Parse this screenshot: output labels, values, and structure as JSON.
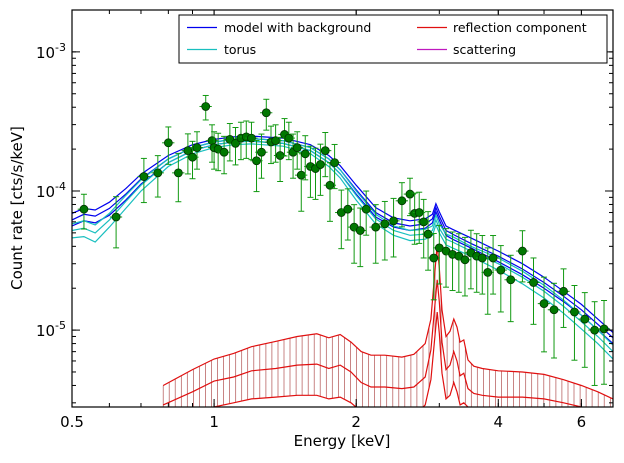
{
  "chart_data": {
    "type": "line",
    "xlabel": "Energy [keV]",
    "ylabel": "Count rate [cts/s/keV]",
    "x_scale": "log",
    "y_scale": "log",
    "xlim": [
      0.5,
      7.0
    ],
    "ylim": [
      2.8e-06,
      0.002
    ],
    "grid": false,
    "legend_position": "top-right",
    "legend_columns": 2,
    "x_tick_labels": [
      {
        "value": 0.5,
        "label": "0.5"
      },
      {
        "value": 1,
        "label": "1"
      },
      {
        "value": 2,
        "label": "2"
      },
      {
        "value": 4,
        "label": "4"
      },
      {
        "value": 6,
        "label": "6"
      }
    ],
    "y_tick_labels": [
      {
        "value": 1e-05,
        "base": "10",
        "exp": "-5"
      },
      {
        "value": 0.0001,
        "base": "10",
        "exp": "-4"
      },
      {
        "value": 0.001,
        "base": "10",
        "exp": "-3"
      }
    ],
    "legend": [
      {
        "name": "model with background",
        "color": "#0000ee"
      },
      {
        "name": "torus",
        "color": "#19bfbf"
      },
      {
        "name": "reflection component",
        "color": "#e01010"
      },
      {
        "name": "scattering",
        "color": "#bf19bf"
      }
    ],
    "series": [
      {
        "name": "model with background",
        "color": "#0000ee",
        "x": [
          0.5,
          0.53,
          0.56,
          0.6,
          0.65,
          0.7,
          0.8,
          0.9,
          1.0,
          1.1,
          1.2,
          1.4,
          1.6,
          1.75,
          1.85,
          2.0,
          2.2,
          2.4,
          2.6,
          2.8,
          2.9,
          2.95,
          3.0,
          3.1,
          3.2,
          3.5,
          4.0,
          4.5,
          5.0,
          5.5,
          6.0,
          6.5,
          7.0
        ],
        "y": [
          6.2e-05,
          6.8e-05,
          6.6e-05,
          7.5e-05,
          9.5e-05,
          0.000122,
          0.00017,
          0.000205,
          0.000225,
          0.000235,
          0.000238,
          0.00023,
          0.000205,
          0.00017,
          0.000142,
          0.000102,
          7e-05,
          5.9e-05,
          5.6e-05,
          5.8e-05,
          6.3e-05,
          7.6e-05,
          6.6e-05,
          5.2e-05,
          4.9e-05,
          4.2e-05,
          3.4e-05,
          2.75e-05,
          2.2e-05,
          1.75e-05,
          1.4e-05,
          1.1e-05,
          8.8e-06
        ],
        "y_lower": [
          5.6e-05,
          6.1e-05,
          5.9e-05,
          6.7e-05,
          8.6e-05,
          0.000112,
          0.00016,
          0.000195,
          0.000215,
          0.000225,
          0.000228,
          0.00022,
          0.000195,
          0.00016,
          0.000133,
          9.5e-05,
          6.5e-05,
          5.5e-05,
          5.2e-05,
          5.4e-05,
          5.9e-05,
          7.1e-05,
          6.2e-05,
          4.8e-05,
          4.5e-05,
          3.9e-05,
          3.1e-05,
          2.5e-05,
          2e-05,
          1.6e-05,
          1.28e-05,
          1e-05,
          8e-06
        ],
        "y_upper": [
          6.9e-05,
          7.5e-05,
          7.3e-05,
          8.3e-05,
          0.000104,
          0.000132,
          0.00018,
          0.000215,
          0.000235,
          0.000245,
          0.000248,
          0.00024,
          0.000215,
          0.00018,
          0.000152,
          0.00011,
          7.6e-05,
          6.4e-05,
          6.1e-05,
          6.3e-05,
          6.8e-05,
          8.1e-05,
          7.1e-05,
          5.6e-05,
          5.3e-05,
          4.6e-05,
          3.7e-05,
          3e-05,
          2.4e-05,
          1.9e-05,
          1.53e-05,
          1.2e-05,
          9.6e-06
        ]
      },
      {
        "name": "torus",
        "color": "#19bfbf",
        "x": [
          0.5,
          0.53,
          0.56,
          0.6,
          0.65,
          0.7,
          0.8,
          0.9,
          1.0,
          1.1,
          1.2,
          1.4,
          1.6,
          1.75,
          1.85,
          2.0,
          2.2,
          2.4,
          2.6,
          2.8,
          2.9,
          2.95,
          3.0,
          3.1,
          3.2,
          3.5,
          4.0,
          4.5,
          5.0,
          5.5,
          6.0,
          6.5,
          7.0
        ],
        "y": [
          5.2e-05,
          5.4e-05,
          5e-05,
          6.2e-05,
          8.4e-05,
          0.00011,
          0.00016,
          0.000195,
          0.000215,
          0.000225,
          0.000228,
          0.00022,
          0.000195,
          0.00016,
          0.000133,
          9.3e-05,
          6.3e-05,
          5.2e-05,
          4.8e-05,
          4.9e-05,
          5.2e-05,
          6.2e-05,
          5.4e-05,
          4.5e-05,
          4.3e-05,
          3.7e-05,
          3e-05,
          2.4e-05,
          1.9e-05,
          1.48e-05,
          1.15e-05,
          9e-06,
          7e-06
        ],
        "y_lower": [
          4.6e-05,
          4.7e-05,
          4.3e-05,
          5.5e-05,
          7.5e-05,
          0.0001,
          0.00015,
          0.000185,
          0.000205,
          0.000215,
          0.000218,
          0.00021,
          0.000185,
          0.00015,
          0.000124,
          8.6e-05,
          5.8e-05,
          4.8e-05,
          4.4e-05,
          4.5e-05,
          4.8e-05,
          5.7e-05,
          5e-05,
          4.1e-05,
          3.9e-05,
          3.4e-05,
          2.7e-05,
          2.15e-05,
          1.7e-05,
          1.32e-05,
          1.02e-05,
          8e-06,
          6.2e-06
        ],
        "y_upper": [
          5.8e-05,
          6.1e-05,
          5.7e-05,
          6.9e-05,
          9.3e-05,
          0.00012,
          0.00017,
          0.000205,
          0.000225,
          0.000235,
          0.000238,
          0.00023,
          0.000205,
          0.00017,
          0.000142,
          0.0001,
          6.8e-05,
          5.6e-05,
          5.2e-05,
          5.3e-05,
          5.6e-05,
          6.7e-05,
          5.8e-05,
          4.9e-05,
          4.7e-05,
          4e-05,
          3.3e-05,
          2.65e-05,
          2.1e-05,
          1.64e-05,
          1.28e-05,
          1e-05,
          7.8e-06
        ]
      },
      {
        "name": "reflection component",
        "color": "#e01010",
        "x": [
          0.78,
          0.9,
          1.0,
          1.1,
          1.2,
          1.35,
          1.5,
          1.65,
          1.75,
          1.85,
          1.95,
          2.05,
          2.15,
          2.3,
          2.5,
          2.65,
          2.8,
          2.88,
          2.94,
          2.97,
          3.0,
          3.04,
          3.1,
          3.16,
          3.22,
          3.27,
          3.32,
          3.38,
          3.45,
          3.55,
          3.7,
          4.0,
          4.5,
          5.0,
          5.5,
          6.0,
          6.5,
          7.0
        ],
        "y": [
          2.9e-06,
          3.6e-06,
          4.3e-06,
          4.6e-06,
          5.1e-06,
          5.3e-06,
          5.6e-06,
          5.7e-06,
          5.3e-06,
          5.6e-06,
          5e-06,
          4.2e-06,
          3.9e-06,
          3.9e-06,
          3.8e-06,
          3.9e-06,
          4.6e-06,
          7.2e-06,
          1.6e-05,
          2.3e-05,
          1.6e-05,
          8.2e-06,
          5.2e-06,
          5.6e-06,
          7e-06,
          6e-06,
          4.7e-06,
          4.9e-06,
          3.8e-06,
          3.5e-06,
          3.4e-06,
          3.3e-06,
          3.3e-06,
          3.2e-06,
          3e-06,
          2.8e-06,
          2.6e-06,
          2.4e-06
        ],
        "y_lower": [
          2e-06,
          2.4e-06,
          2.8e-06,
          3e-06,
          3.2e-06,
          3.3e-06,
          3.4e-06,
          3.4e-06,
          3.2e-06,
          3.3e-06,
          3e-06,
          2.6e-06,
          2.4e-06,
          2.4e-06,
          2.4e-06,
          2.4e-06,
          2.9e-06,
          4.4e-06,
          9.5e-06,
          1.35e-05,
          9.5e-06,
          4.9e-06,
          3.2e-06,
          3.4e-06,
          4.2e-06,
          3.6e-06,
          2.9e-06,
          3e-06,
          2.8e-06,
          2.7e-06,
          2.7e-06,
          2.7e-06,
          2.6e-06,
          2.5e-06,
          2.3e-06,
          2.1e-06,
          2e-06,
          1.9e-06
        ],
        "y_upper": [
          4e-06,
          5.2e-06,
          6.2e-06,
          6.8e-06,
          7.6e-06,
          8.3e-06,
          9e-06,
          9.4e-06,
          8.8e-06,
          9.3e-06,
          8.2e-06,
          7e-06,
          6.6e-06,
          6.6e-06,
          6.4e-06,
          6.7e-06,
          8e-06,
          1.2e-05,
          2.8e-05,
          4.1e-05,
          2.8e-05,
          1.4e-05,
          9e-06,
          9.8e-06,
          1.2e-05,
          1.05e-05,
          8.2e-06,
          8.5e-06,
          6.1e-06,
          5.5e-06,
          5.3e-06,
          5.1e-06,
          5e-06,
          4.8e-06,
          4.4e-06,
          4e-06,
          3.6e-06,
          3.2e-06
        ]
      }
    ],
    "data_points": {
      "name": "data",
      "color": "#007700",
      "errorbar_color": "#119911",
      "x": [
        0.53,
        0.62,
        0.71,
        0.76,
        0.8,
        0.84,
        0.88,
        0.9,
        0.92,
        0.96,
        0.99,
        1.0,
        1.02,
        1.05,
        1.08,
        1.11,
        1.14,
        1.17,
        1.2,
        1.23,
        1.26,
        1.29,
        1.32,
        1.35,
        1.38,
        1.41,
        1.44,
        1.47,
        1.5,
        1.53,
        1.56,
        1.6,
        1.64,
        1.68,
        1.72,
        1.76,
        1.8,
        1.86,
        1.92,
        1.98,
        2.04,
        2.1,
        2.2,
        2.3,
        2.4,
        2.5,
        2.6,
        2.66,
        2.72,
        2.78,
        2.84,
        2.92,
        3.0,
        3.1,
        3.2,
        3.3,
        3.4,
        3.5,
        3.6,
        3.7,
        3.8,
        3.9,
        4.05,
        4.25,
        4.5,
        4.75,
        5.0,
        5.25,
        5.5,
        5.8,
        6.1,
        6.4,
        6.7
      ],
      "y": [
        7.4e-05,
        6.5e-05,
        0.000127,
        0.000135,
        0.000222,
        0.000135,
        0.000195,
        0.000175,
        0.000205,
        0.000405,
        0.00023,
        0.000205,
        0.0002,
        0.00019,
        0.000235,
        0.00022,
        0.00024,
        0.000245,
        0.00024,
        0.000165,
        0.00019,
        0.000365,
        0.000225,
        0.00023,
        0.00018,
        0.000255,
        0.00024,
        0.00019,
        0.000205,
        0.00013,
        0.000185,
        0.00015,
        0.000145,
        0.000155,
        0.000195,
        0.00011,
        0.00016,
        7e-05,
        7.4e-05,
        5.5e-05,
        5.2e-05,
        7.4e-05,
        5.5e-05,
        5.8e-05,
        6.1e-05,
        8.5e-05,
        9.5e-05,
        6.9e-05,
        7e-05,
        6e-05,
        4.9e-05,
        3.3e-05,
        3.9e-05,
        3.7e-05,
        3.5e-05,
        3.4e-05,
        3.2e-05,
        3.6e-05,
        3.4e-05,
        3.3e-05,
        2.6e-05,
        3.3e-05,
        2.7e-05,
        2.3e-05,
        3.7e-05,
        2.2e-05,
        1.55e-05,
        1.4e-05,
        1.9e-05,
        1.35e-05,
        1.2e-05,
        1e-05,
        1.02e-05
      ],
      "yerr_rel": [
        0.28,
        0.4,
        0.35,
        0.33,
        0.3,
        0.38,
        0.32,
        0.3,
        0.3,
        0.2,
        0.3,
        0.3,
        0.3,
        0.3,
        0.3,
        0.3,
        0.3,
        0.3,
        0.3,
        0.4,
        0.35,
        0.25,
        0.3,
        0.3,
        0.35,
        0.3,
        0.3,
        0.35,
        0.3,
        0.45,
        0.35,
        0.4,
        0.4,
        0.4,
        0.35,
        0.45,
        0.35,
        0.45,
        0.4,
        0.45,
        0.45,
        0.35,
        0.45,
        0.45,
        0.45,
        0.35,
        0.3,
        0.4,
        0.4,
        0.45,
        0.45,
        0.5,
        0.45,
        0.45,
        0.45,
        0.45,
        0.45,
        0.45,
        0.45,
        0.45,
        0.5,
        0.45,
        0.5,
        0.5,
        0.4,
        0.5,
        0.55,
        0.55,
        0.45,
        0.55,
        0.55,
        0.6,
        0.6
      ],
      "xerr_rel": 0.03
    }
  }
}
